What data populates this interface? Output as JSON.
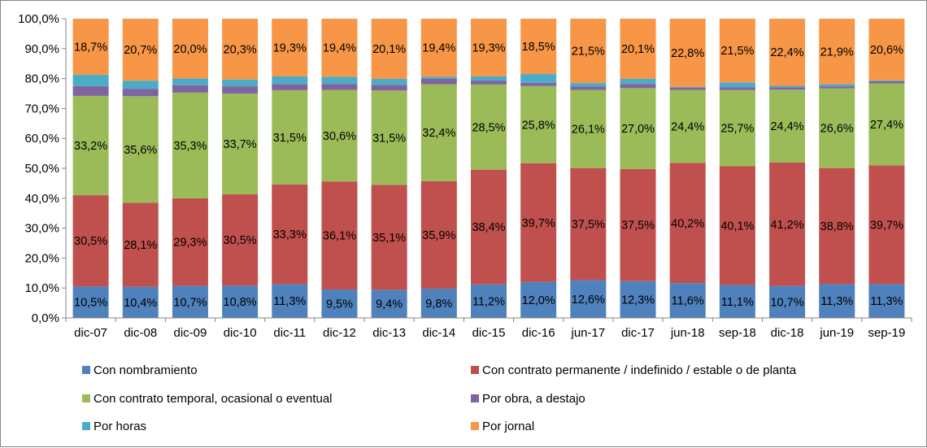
{
  "chart_data": {
    "type": "bar",
    "stacked": true,
    "percent_stacked": true,
    "categories": [
      "dic-07",
      "dic-08",
      "dic-09",
      "dic-10",
      "dic-11",
      "dic-12",
      "dic-13",
      "dic-14",
      "dic-15",
      "dic-16",
      "jun-17",
      "dic-17",
      "jun-18",
      "sep-18",
      "dic-18",
      "jun-19",
      "sep-19"
    ],
    "ylim": [
      0,
      100
    ],
    "yticks": [
      "0,0%",
      "10,0%",
      "20,0%",
      "30,0%",
      "40,0%",
      "50,0%",
      "60,0%",
      "70,0%",
      "80,0%",
      "90,0%",
      "100,0%"
    ],
    "grid": false,
    "legend_position": "bottom",
    "series": [
      {
        "name": "Con nombramiento",
        "color": "#4F81BD",
        "values": [
          10.5,
          10.4,
          10.7,
          10.8,
          11.3,
          9.5,
          9.4,
          9.8,
          11.2,
          12.0,
          12.6,
          12.3,
          11.6,
          11.1,
          10.7,
          11.3,
          11.3
        ],
        "labels": [
          "10,5%",
          "10,4%",
          "10,7%",
          "10,8%",
          "11,3%",
          "9,5%",
          "9,4%",
          "9,8%",
          "11,2%",
          "12,0%",
          "12,6%",
          "12,3%",
          "11,6%",
          "11,1%",
          "10,7%",
          "11,3%",
          "11,3%"
        ]
      },
      {
        "name": "Con contrato permanente / indefinido / estable o de planta",
        "color": "#C0504D",
        "values": [
          30.5,
          28.1,
          29.3,
          30.5,
          33.3,
          36.1,
          35.1,
          35.9,
          38.4,
          39.7,
          37.5,
          37.5,
          40.2,
          40.1,
          41.2,
          38.8,
          39.7
        ],
        "labels": [
          "30,5%",
          "28,1%",
          "29,3%",
          "30,5%",
          "33,3%",
          "36,1%",
          "35,1%",
          "35,9%",
          "38,4%",
          "39,7%",
          "37,5%",
          "37,5%",
          "40,2%",
          "40,1%",
          "41,2%",
          "38,8%",
          "39,7%"
        ]
      },
      {
        "name": "Con contrato temporal, ocasional o eventual",
        "color": "#9BBB59",
        "values": [
          33.2,
          35.6,
          35.3,
          33.7,
          31.5,
          30.6,
          31.5,
          32.4,
          28.5,
          25.8,
          26.1,
          27.0,
          24.4,
          25.7,
          24.4,
          26.6,
          27.4
        ],
        "labels": [
          "33,2%",
          "35,6%",
          "35,3%",
          "33,7%",
          "31,5%",
          "30,6%",
          "31,5%",
          "32,4%",
          "28,5%",
          "25,8%",
          "26,1%",
          "27,0%",
          "24,4%",
          "25,7%",
          "24,4%",
          "26,6%",
          "27,4%"
        ]
      },
      {
        "name": "Por obra, a destajo",
        "color": "#8064A2",
        "values": [
          3.3,
          2.5,
          2.5,
          2.4,
          2.0,
          2.0,
          1.9,
          1.8,
          1.3,
          1.1,
          1.1,
          1.4,
          0.8,
          0.9,
          0.8,
          0.7,
          0.7
        ],
        "labels": []
      },
      {
        "name": "Por horas",
        "color": "#4BACC6",
        "values": [
          3.8,
          2.7,
          2.2,
          2.3,
          2.6,
          2.4,
          2.0,
          0.7,
          1.4,
          2.9,
          1.2,
          1.7,
          0.2,
          1.7,
          0.5,
          0.7,
          0.3
        ],
        "labels": []
      },
      {
        "name": "Por jornal",
        "color": "#F79646",
        "values": [
          18.7,
          20.7,
          20.0,
          20.3,
          19.3,
          19.4,
          20.1,
          19.4,
          19.3,
          18.5,
          21.5,
          20.1,
          22.8,
          21.5,
          22.4,
          21.9,
          20.6
        ],
        "labels": [
          "18,7%",
          "20,7%",
          "20,0%",
          "20,3%",
          "19,3%",
          "19,4%",
          "20,1%",
          "19,4%",
          "19,3%",
          "18,5%",
          "21,5%",
          "20,1%",
          "22,8%",
          "21,5%",
          "22,4%",
          "21,9%",
          "20,6%"
        ]
      }
    ]
  }
}
